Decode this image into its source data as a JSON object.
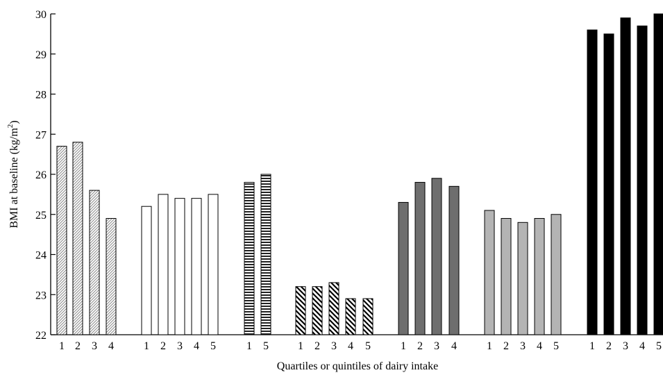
{
  "chart_data": {
    "type": "bar",
    "xlabel": "Quartiles or quintiles of dairy intake",
    "ylabel": "BMI at baseline (kg/m",
    "ylabel_superscript": "2",
    "ylabel_suffix": ")",
    "ylim": [
      22,
      30
    ],
    "yticks": [
      22,
      23,
      24,
      25,
      26,
      27,
      28,
      29,
      30
    ],
    "grid": false,
    "legend": "none",
    "groups": [
      {
        "pattern": "diagonal-fine",
        "categories": [
          "1",
          "2",
          "3",
          "4"
        ],
        "values": [
          26.7,
          26.8,
          25.6,
          24.9
        ]
      },
      {
        "pattern": "white",
        "categories": [
          "1",
          "2",
          "3",
          "4",
          "5"
        ],
        "values": [
          25.2,
          25.5,
          25.4,
          25.4,
          25.5
        ]
      },
      {
        "pattern": "horizontal-stripes",
        "categories": [
          "1",
          "5"
        ],
        "values": [
          25.8,
          26.0
        ]
      },
      {
        "pattern": "diagonal-bold",
        "categories": [
          "1",
          "2",
          "3",
          "4",
          "5"
        ],
        "values": [
          23.2,
          23.2,
          23.3,
          22.9,
          22.9
        ]
      },
      {
        "pattern": "dark-gray",
        "categories": [
          "1",
          "2",
          "3",
          "4"
        ],
        "values": [
          25.3,
          25.8,
          25.9,
          25.7
        ]
      },
      {
        "pattern": "light-gray",
        "categories": [
          "1",
          "2",
          "3",
          "4",
          "5"
        ],
        "values": [
          25.1,
          24.9,
          24.8,
          24.9,
          25.0
        ]
      },
      {
        "pattern": "black",
        "categories": [
          "1",
          "2",
          "3",
          "4",
          "5"
        ],
        "values": [
          29.6,
          29.5,
          29.9,
          29.7,
          30.0
        ]
      }
    ]
  }
}
